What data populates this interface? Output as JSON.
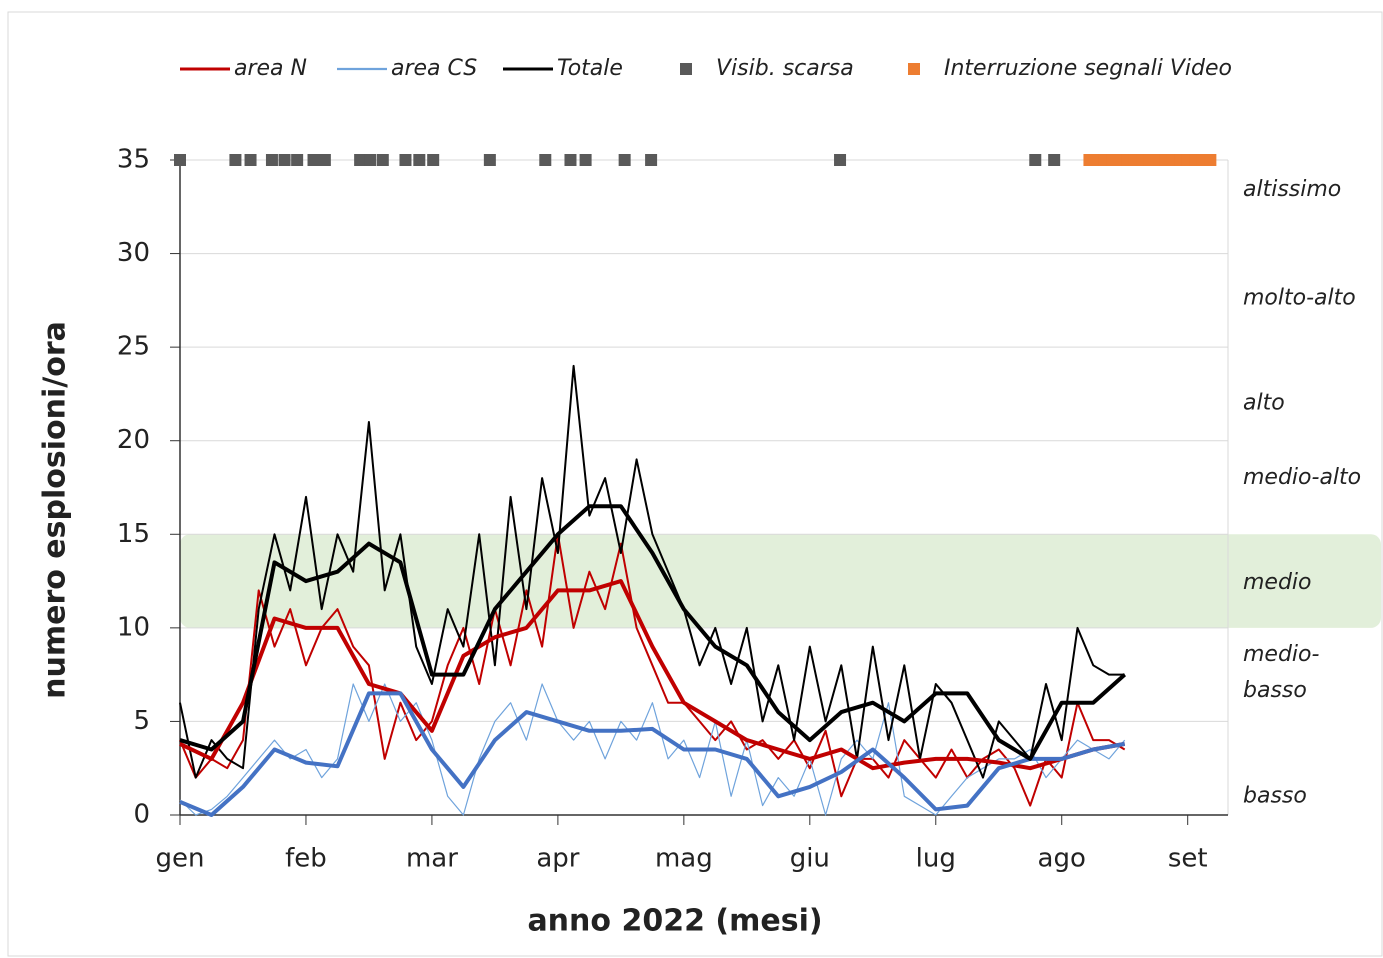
{
  "chart_data": {
    "type": "line",
    "x_label": "anno 2022 (mesi)",
    "y_label": "numero esplosioni/ora",
    "xlim": [
      0,
      8.32
    ],
    "xticks": [
      {
        "value": 0,
        "label": "gen"
      },
      {
        "value": 1,
        "label": "feb"
      },
      {
        "value": 2,
        "label": "mar"
      },
      {
        "value": 3,
        "label": "apr"
      },
      {
        "value": 4,
        "label": "mag"
      },
      {
        "value": 5,
        "label": "giu"
      },
      {
        "value": 6,
        "label": "lug"
      },
      {
        "value": 7,
        "label": "ago"
      },
      {
        "value": 8,
        "label": "set"
      }
    ],
    "ylim": [
      0,
      35
    ],
    "yticks": [
      0,
      5,
      10,
      15,
      20,
      25,
      30,
      35
    ],
    "grid": true,
    "band": {
      "ymin": 10,
      "ymax": 15,
      "color": "#e2efda"
    },
    "level_labels": [
      {
        "lines": [
          "altissimo"
        ],
        "value": 33.4
      },
      {
        "lines": [
          "molto-alto"
        ],
        "value": 27.6
      },
      {
        "lines": [
          "alto"
        ],
        "value": 22
      },
      {
        "lines": [
          "medio-alto"
        ],
        "value": 18
      },
      {
        "lines": [
          "medio"
        ],
        "value": 12.4
      },
      {
        "lines": [
          "medio-",
          "basso"
        ],
        "value": 7.6
      },
      {
        "lines": [
          "basso"
        ],
        "value": 1
      }
    ],
    "series": [
      {
        "name": "area N",
        "style": "line",
        "color": "#c00000",
        "width": 2,
        "x": [
          0,
          0.125,
          0.25,
          0.375,
          0.5,
          0.625,
          0.75,
          0.875,
          1,
          1.125,
          1.25,
          1.375,
          1.5,
          1.625,
          1.75,
          1.875,
          2,
          2.125,
          2.25,
          2.375,
          2.5,
          2.625,
          2.75,
          2.875,
          3,
          3.125,
          3.25,
          3.375,
          3.5,
          3.625,
          3.75,
          3.875,
          4,
          4.125,
          4.25,
          4.375,
          4.5,
          4.625,
          4.75,
          4.875,
          5,
          5.125,
          5.25,
          5.375,
          5.5,
          5.625,
          5.75,
          5.875,
          6,
          6.125,
          6.25,
          6.375,
          6.5,
          6.625,
          6.75,
          6.875,
          7,
          7.125,
          7.25,
          7.375,
          7.5
        ],
        "values": [
          4,
          2,
          3,
          2.5,
          4,
          12,
          9,
          11,
          8,
          10,
          11,
          9,
          8,
          3,
          6,
          4,
          5,
          8,
          10,
          7,
          11,
          8,
          12,
          9,
          15,
          10,
          13,
          11,
          14.5,
          10,
          8,
          6,
          6,
          5,
          4,
          5,
          3.5,
          4,
          3,
          4,
          2.5,
          4.5,
          1,
          3,
          3,
          2,
          4,
          3,
          2,
          3.5,
          2,
          3,
          3.5,
          2.5,
          0.5,
          3,
          2,
          6,
          4,
          4,
          3.5
        ]
      },
      {
        "name": "area CS",
        "style": "line",
        "color": "#6fa3dc",
        "width": 1.2,
        "x": [
          0,
          0.125,
          0.25,
          0.375,
          0.5,
          0.625,
          0.75,
          0.875,
          1,
          1.125,
          1.25,
          1.375,
          1.5,
          1.625,
          1.75,
          1.875,
          2,
          2.125,
          2.25,
          2.375,
          2.5,
          2.625,
          2.75,
          2.875,
          3,
          3.125,
          3.25,
          3.375,
          3.5,
          3.625,
          3.75,
          3.875,
          4,
          4.125,
          4.25,
          4.375,
          4.5,
          4.625,
          4.75,
          4.875,
          5,
          5.125,
          5.25,
          5.375,
          5.5,
          5.625,
          5.75,
          5.875,
          6,
          6.125,
          6.25,
          6.375,
          6.5,
          6.625,
          6.75,
          6.875,
          7,
          7.125,
          7.25,
          7.375,
          7.5
        ],
        "values": [
          0.8,
          0,
          0.3,
          1,
          2,
          3,
          4,
          3,
          3.5,
          2,
          3,
          7,
          5,
          7,
          5,
          6,
          4,
          1,
          0,
          3,
          5,
          6,
          4,
          7,
          5,
          4,
          5,
          3,
          5,
          4,
          6,
          3,
          4,
          2,
          5,
          1,
          4,
          0.5,
          2,
          1,
          3,
          0,
          3,
          4,
          3,
          6,
          1,
          0.5,
          0,
          1,
          2,
          2.5,
          3,
          3,
          3.5,
          2,
          3,
          4,
          3.5,
          3,
          4
        ]
      },
      {
        "name": "Totale",
        "style": "line",
        "color": "#000000",
        "width": 2,
        "x": [
          0,
          0.125,
          0.25,
          0.375,
          0.5,
          0.625,
          0.75,
          0.875,
          1,
          1.125,
          1.25,
          1.375,
          1.5,
          1.625,
          1.75,
          1.875,
          2,
          2.125,
          2.25,
          2.375,
          2.5,
          2.625,
          2.75,
          2.875,
          3,
          3.125,
          3.25,
          3.375,
          3.5,
          3.625,
          3.75,
          3.875,
          4,
          4.125,
          4.25,
          4.375,
          4.5,
          4.625,
          4.75,
          4.875,
          5,
          5.125,
          5.25,
          5.375,
          5.5,
          5.625,
          5.75,
          5.875,
          6,
          6.125,
          6.25,
          6.375,
          6.5,
          6.625,
          6.75,
          6.875,
          7,
          7.125,
          7.25,
          7.375,
          7.5
        ],
        "values": [
          6,
          2,
          4,
          3,
          2.5,
          11,
          15,
          12,
          17,
          11,
          15,
          13,
          21,
          12,
          15,
          9,
          7,
          11,
          9,
          15,
          8,
          17,
          11,
          18,
          14,
          24,
          16,
          18,
          14,
          19,
          15,
          13,
          11,
          8,
          10,
          7,
          10,
          5,
          8,
          4,
          9,
          5,
          8,
          3,
          9,
          4,
          8,
          3,
          7,
          6,
          4,
          2,
          5,
          4,
          3,
          7,
          4,
          10,
          8,
          7.5,
          7.5
        ]
      },
      {
        "style": "line",
        "color": "#c00000",
        "width": 4,
        "x": [
          0,
          0.25,
          0.5,
          0.75,
          1,
          1.25,
          1.5,
          1.75,
          2,
          2.25,
          2.5,
          2.75,
          3,
          3.25,
          3.5,
          3.75,
          4,
          4.25,
          4.5,
          4.75,
          5,
          5.25,
          5.5,
          5.75,
          6,
          6.25,
          6.5,
          6.75,
          7,
          7.25,
          7.5
        ],
        "values": [
          3.8,
          3,
          6,
          10.5,
          10,
          10,
          7,
          6.5,
          4.5,
          8.5,
          9.5,
          10,
          12,
          12,
          12.5,
          9,
          6,
          5,
          4,
          3.5,
          3,
          3.5,
          2.5,
          2.8,
          3,
          3,
          2.8,
          2.5,
          3,
          3.5,
          3.8
        ]
      },
      {
        "style": "line",
        "color": "#4472c4",
        "width": 4,
        "x": [
          0,
          0.25,
          0.5,
          0.75,
          1,
          1.25,
          1.5,
          1.75,
          2,
          2.25,
          2.5,
          2.75,
          3,
          3.25,
          3.5,
          3.75,
          4,
          4.25,
          4.5,
          4.75,
          5,
          5.25,
          5.5,
          5.75,
          6,
          6.25,
          6.5,
          6.75,
          7,
          7.25,
          7.5
        ],
        "values": [
          0.7,
          0,
          1.5,
          3.5,
          2.8,
          2.6,
          6.5,
          6.5,
          3.5,
          1.5,
          4,
          5.5,
          5,
          4.5,
          4.5,
          4.6,
          3.5,
          3.5,
          3,
          1,
          1.5,
          2.3,
          3.5,
          2,
          0.3,
          0.5,
          2.5,
          3,
          3,
          3.5,
          3.8
        ]
      },
      {
        "style": "line",
        "color": "#000000",
        "width": 4,
        "x": [
          0,
          0.25,
          0.5,
          0.75,
          1,
          1.25,
          1.5,
          1.75,
          2,
          2.25,
          2.5,
          2.75,
          3,
          3.25,
          3.5,
          3.75,
          4,
          4.25,
          4.5,
          4.75,
          5,
          5.25,
          5.5,
          5.75,
          6,
          6.25,
          6.5,
          6.75,
          7,
          7.25,
          7.5
        ],
        "values": [
          4,
          3.5,
          5,
          13.5,
          12.5,
          13,
          14.5,
          13.5,
          7.5,
          7.5,
          11,
          13,
          15,
          16.5,
          16.5,
          14,
          11,
          9,
          8,
          5.5,
          4,
          5.5,
          6,
          5,
          6.5,
          6.5,
          4,
          3,
          6,
          6,
          7.5
        ]
      },
      {
        "name": "Visib. scarsa",
        "style": "marker",
        "color": "#595959",
        "x": [
          0,
          0.44,
          0.56,
          0.73,
          0.83,
          0.93,
          1.06,
          1.15,
          1.43,
          1.51,
          1.61,
          1.79,
          1.9,
          2.01,
          2.46,
          2.9,
          3.1,
          3.22,
          3.53,
          3.74,
          5.24,
          6.79,
          6.94
        ],
        "values": [
          35,
          35,
          35,
          35,
          35,
          35,
          35,
          35,
          35,
          35,
          35,
          35,
          35,
          35,
          35,
          35,
          35,
          35,
          35,
          35,
          35,
          35,
          35
        ]
      },
      {
        "name": "Interruzione segnali Video",
        "style": "marker",
        "color": "#ed7d31",
        "x": [
          7.22,
          7.28,
          7.34,
          7.4,
          7.46,
          7.52,
          7.58,
          7.64,
          7.7,
          7.76,
          7.82,
          7.88,
          7.94,
          8,
          8.06,
          8.12,
          8.18
        ],
        "values": [
          35,
          35,
          35,
          35,
          35,
          35,
          35,
          35,
          35,
          35,
          35,
          35,
          35,
          35,
          35,
          35,
          35
        ]
      }
    ]
  }
}
